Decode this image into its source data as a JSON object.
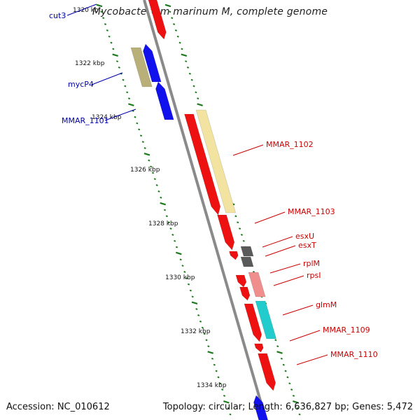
{
  "header": {
    "title": "Mycobacterium marinum M, complete genome"
  },
  "footer": {
    "accession": "Accession: NC_010612",
    "summary": "Topology: circular; Length: 6,636,827 bp; Genes: 5,472"
  },
  "ruler": {
    "ticks": [
      "1320 kb",
      "1322 kbp",
      "1324 kbp",
      "1326 kbp",
      "1328 kbp",
      "1330 kbp",
      "1332 kbp",
      "1334 kbp"
    ]
  },
  "colors": {
    "cds_forward": "#ee1111",
    "cds_reverse": "#1111ee",
    "backbone": "#8a8a8a",
    "ruler": "#1f7a1f",
    "label_left": "#0000aa",
    "label_right": "#cc0000",
    "cog_khaki": "#b8b078",
    "cog_lightyellow": "#f2e3a0",
    "cog_darkgray": "#5a5a5a",
    "cog_pink": "#f08e8e",
    "cog_cyan": "#22cccc"
  },
  "genes_left": [
    {
      "label": "cut3"
    },
    {
      "label": "mycP4"
    },
    {
      "label": "MMAR_1101"
    }
  ],
  "genes_right": [
    {
      "label": "MMAR_1102"
    },
    {
      "label": "MMAR_1103"
    },
    {
      "label": "esxU"
    },
    {
      "label": "esxT"
    },
    {
      "label": "rplM"
    },
    {
      "label": "rpsI"
    },
    {
      "label": "glmM"
    },
    {
      "label": "MMAR_1109"
    },
    {
      "label": "MMAR_1110"
    }
  ]
}
